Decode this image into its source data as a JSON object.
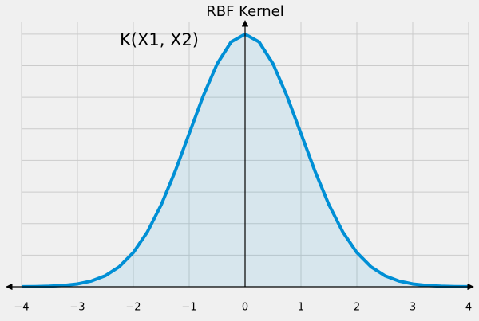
{
  "chart_data": {
    "type": "line",
    "title": "RBF Kernel",
    "annotation": "K(X1, X2)",
    "x": [
      -4,
      -3.75,
      -3.5,
      -3.25,
      -3,
      -2.75,
      -2.5,
      -2.25,
      -2,
      -1.75,
      -1.5,
      -1.25,
      -1,
      -0.75,
      -0.5,
      -0.25,
      0,
      0.25,
      0.5,
      0.75,
      1,
      1.25,
      1.5,
      1.75,
      2,
      2.25,
      2.5,
      2.75,
      3,
      3.25,
      3.5,
      3.75,
      4
    ],
    "series": [
      {
        "color": "#008fd5",
        "values": [
          0.0003,
          0.0009,
          0.0022,
          0.0051,
          0.0111,
          0.0228,
          0.0439,
          0.0796,
          0.1353,
          0.2163,
          0.3247,
          0.4578,
          0.6065,
          0.7548,
          0.8825,
          0.9692,
          1,
          0.9692,
          0.8825,
          0.7548,
          0.6065,
          0.4578,
          0.3247,
          0.2163,
          0.1353,
          0.0796,
          0.0439,
          0.0228,
          0.0111,
          0.0051,
          0.0022,
          0.0009,
          0.0003
        ]
      }
    ],
    "xlim": [
      -4,
      4
    ],
    "xticks": [
      {
        "value": -4,
        "label": "−4"
      },
      {
        "value": -3,
        "label": "−3"
      },
      {
        "value": -2,
        "label": "−2"
      },
      {
        "value": -1,
        "label": "−1"
      },
      0,
      1,
      2,
      3,
      4
    ],
    "ylim": [
      0,
      1.05
    ],
    "yticks": [
      0,
      0.125,
      0.25,
      0.375,
      0.5,
      0.625,
      0.75,
      0.875,
      1
    ],
    "grid": true,
    "fill": true
  }
}
